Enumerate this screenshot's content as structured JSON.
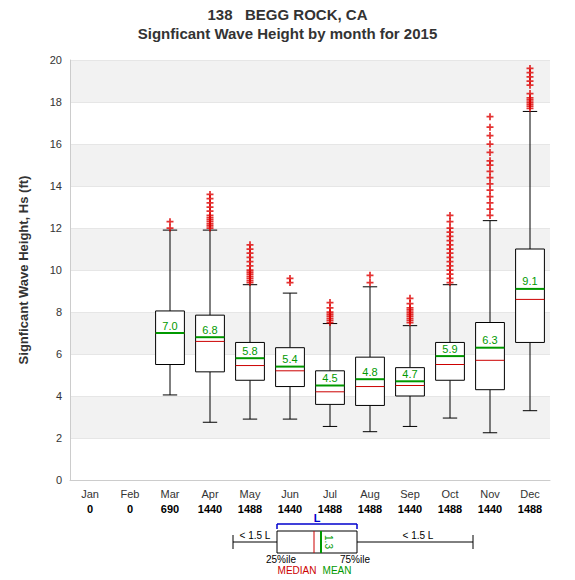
{
  "chart_data": {
    "type": "boxplot",
    "title": "138   BEGG ROCK, CA",
    "subtitle": "Signficant Wave Height by month for 2015",
    "y_label": "Signficant Wave Height, Hs (ft)",
    "categories": [
      "Jan",
      "Feb",
      "Mar",
      "Apr",
      "May",
      "Jun",
      "Jul",
      "Aug",
      "Sep",
      "Oct",
      "Nov",
      "Dec"
    ],
    "counts": [
      0,
      0,
      690,
      1440,
      1488,
      1440,
      1488,
      1488,
      1440,
      1488,
      1440,
      1488
    ],
    "color": "#000000",
    "whisker_low": [
      null,
      null,
      4.05,
      2.75,
      2.9,
      2.9,
      2.55,
      2.3,
      2.55,
      2.95,
      2.25,
      3.3
    ],
    "q1": [
      null,
      null,
      5.5,
      5.15,
      4.75,
      4.45,
      3.6,
      3.55,
      4.0,
      4.75,
      4.3,
      6.55
    ],
    "median": {
      "values": [
        null,
        null,
        7.0,
        6.6,
        5.45,
        5.2,
        4.2,
        4.45,
        4.5,
        5.5,
        5.7,
        8.6
      ],
      "color": "#cc0000"
    },
    "q3": [
      null,
      null,
      8.05,
      7.85,
      6.55,
      6.3,
      5.2,
      5.85,
      5.35,
      6.55,
      7.5,
      11.0
    ],
    "whisker_high": [
      null,
      null,
      11.9,
      11.9,
      9.3,
      8.9,
      7.45,
      9.2,
      7.35,
      9.3,
      12.35,
      17.55
    ],
    "mean": {
      "values": [
        null,
        null,
        7.0,
        6.8,
        5.8,
        5.4,
        4.5,
        4.8,
        4.7,
        5.9,
        6.3,
        9.1
      ],
      "value_labels": [
        null,
        null,
        "7.0",
        "6.8",
        "5.8",
        "5.4",
        "4.5",
        "4.8",
        "4.7",
        "5.9",
        "6.3",
        "9.1"
      ],
      "color": "#009900"
    },
    "outliers": {
      "values": [
        null,
        null,
        [
          12.0,
          12.3
        ],
        [
          12.0,
          12.1,
          12.2,
          12.3,
          12.4,
          12.5,
          12.6,
          12.8,
          13.0,
          13.2,
          13.4,
          13.6
        ],
        [
          9.4,
          9.5,
          9.6,
          9.7,
          9.8,
          9.9,
          10.0,
          10.2,
          10.4,
          10.6,
          10.8,
          11.0,
          11.2
        ],
        [
          9.4,
          9.6
        ],
        [
          7.5,
          7.6,
          7.7,
          7.8,
          7.9,
          8.0,
          8.2,
          8.45
        ],
        [
          9.4,
          9.75
        ],
        [
          7.5,
          7.6,
          7.7,
          7.8,
          7.9,
          8.0,
          8.1,
          8.2,
          8.4,
          8.65
        ],
        [
          9.4,
          9.6,
          9.8,
          10.0,
          10.2,
          10.4,
          10.6,
          10.8,
          11.0,
          11.2,
          11.4,
          11.6,
          11.8,
          12.0,
          12.3,
          12.6
        ],
        [
          12.6,
          12.9,
          13.2,
          13.5,
          13.8,
          14.1,
          14.4,
          14.7,
          15.0,
          15.2,
          15.6,
          16.0,
          16.4,
          16.8,
          17.3
        ],
        [
          17.7,
          17.8,
          17.9,
          18.0,
          18.1,
          18.2,
          18.4,
          18.8,
          19.0,
          19.2,
          19.4,
          19.6
        ]
      ],
      "color": "#dd0000",
      "marker": "plus"
    },
    "data_labels": true,
    "ylim": [
      0,
      20
    ],
    "yticks": [
      0,
      2,
      4,
      6,
      8,
      10,
      12,
      14,
      16,
      18,
      20
    ],
    "grid": true,
    "key": {
      "length": "L",
      "whisker": "< 1.5 L",
      "q1": "25%ile",
      "q3": "75%ile",
      "median": "MEDIAN",
      "mean": "MEAN",
      "mean_value": "1.3",
      "length_color": "#0000cc"
    }
  }
}
